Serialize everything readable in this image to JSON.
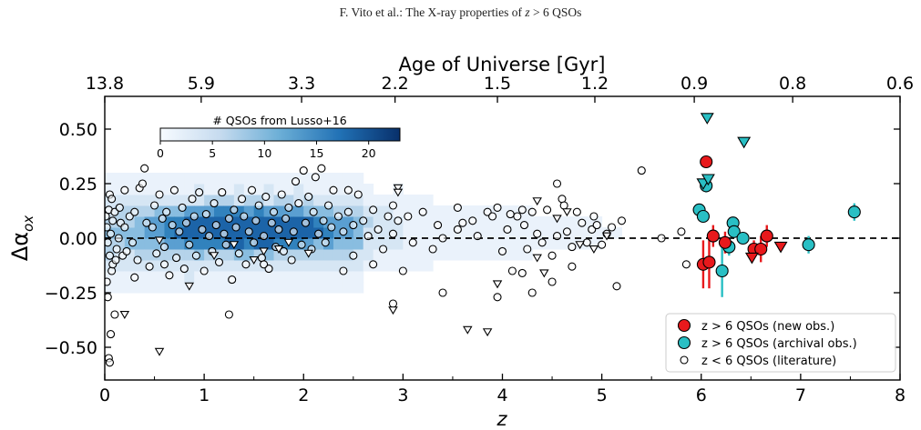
{
  "header": {
    "prefix": "F. Vito et al.: The X-ray properties of ",
    "var": "z",
    "suffix": " > 6 QSOs"
  },
  "chart_data": {
    "type": "scatter",
    "xlabel": "z",
    "ylabel": "Δα",
    "ylabel_sub": "ox",
    "xlim": [
      0,
      8
    ],
    "ylim": [
      -0.65,
      0.65
    ],
    "xticks": [
      "0",
      "1",
      "2",
      "3",
      "4",
      "5",
      "6",
      "7",
      "8"
    ],
    "yticks": [
      {
        "v": 0.5,
        "label": "0.50"
      },
      {
        "v": 0.25,
        "label": "0.25"
      },
      {
        "v": 0.0,
        "label": "0.00"
      },
      {
        "v": -0.25,
        "label": "−0.25"
      },
      {
        "v": -0.5,
        "label": "−0.50"
      }
    ],
    "top_axis": {
      "label": "Age of Universe [Gyr]",
      "ticks": [
        {
          "z": 0.0,
          "label": "13.8"
        },
        {
          "z": 0.97,
          "label": "5.9"
        },
        {
          "z": 1.98,
          "label": "3.3"
        },
        {
          "z": 2.92,
          "label": "2.2"
        },
        {
          "z": 3.95,
          "label": "1.5"
        },
        {
          "z": 4.93,
          "label": "1.2"
        },
        {
          "z": 5.93,
          "label": "0.9"
        },
        {
          "z": 6.92,
          "label": "0.8"
        },
        {
          "z": 8.0,
          "label": "0.6"
        }
      ]
    },
    "reference_line": {
      "y": 0.0,
      "style": "dashed"
    },
    "colorbar": {
      "label": "# QSOs from Lusso+16",
      "ticks": [
        "0",
        "5",
        "10",
        "15",
        "20"
      ],
      "range": [
        0,
        23
      ],
      "placement": "upper-left, horizontal"
    },
    "legend": {
      "placement": "lower-right",
      "entries": [
        {
          "label": "z > 6 QSOs (new obs.)",
          "color": "#e8191c",
          "marker": "circle"
        },
        {
          "label": "z > 6 QSOs (archival obs.)",
          "color": "#29bfc4",
          "marker": "circle"
        },
        {
          "label": "z < 6 QSOs (literature)",
          "color": "#ffffff",
          "marker": "open-circle"
        }
      ]
    },
    "series": [
      {
        "name": "z > 6 QSOs (new obs.)",
        "color": "#e8191c",
        "detections": [
          {
            "x": 6.05,
            "y": 0.35,
            "err": 0.0
          },
          {
            "x": 6.12,
            "y": 0.01,
            "err": 0.05
          },
          {
            "x": 6.02,
            "y": -0.12,
            "err": 0.11
          },
          {
            "x": 6.08,
            "y": -0.11,
            "err": 0.12
          },
          {
            "x": 6.24,
            "y": -0.02,
            "err": 0.05
          },
          {
            "x": 6.53,
            "y": -0.05,
            "err": 0.04
          },
          {
            "x": 6.6,
            "y": -0.05,
            "err": 0.06
          },
          {
            "x": 6.66,
            "y": 0.01,
            "err": 0.05
          }
        ],
        "upper_limits": [
          {
            "x": 6.51,
            "y": -0.09
          },
          {
            "x": 6.8,
            "y": -0.04
          }
        ]
      },
      {
        "name": "z > 6 QSOs (archival obs.)",
        "color": "#29bfc4",
        "detections": [
          {
            "x": 5.98,
            "y": 0.13,
            "err": 0.0
          },
          {
            "x": 6.02,
            "y": 0.1,
            "err": 0.0
          },
          {
            "x": 6.05,
            "y": 0.24,
            "err": 0.03
          },
          {
            "x": 6.21,
            "y": -0.15,
            "err": 0.12
          },
          {
            "x": 6.28,
            "y": -0.04,
            "err": 0.04
          },
          {
            "x": 6.32,
            "y": 0.07,
            "err": 0.0
          },
          {
            "x": 6.33,
            "y": 0.03,
            "err": 0.0
          },
          {
            "x": 6.42,
            "y": 0.0,
            "err": 0.0
          },
          {
            "x": 7.08,
            "y": -0.03,
            "err": 0.04
          },
          {
            "x": 7.54,
            "y": 0.12,
            "err": 0.04
          }
        ],
        "upper_limits": [
          {
            "x": 6.06,
            "y": 0.55
          },
          {
            "x": 6.43,
            "y": 0.44
          },
          {
            "x": 6.02,
            "y": 0.25
          },
          {
            "x": 6.07,
            "y": 0.27
          }
        ]
      },
      {
        "name": "z < 6 QSOs (literature)",
        "color": "#ffffff",
        "detections": [
          {
            "x": 0.01,
            "y": 0.1
          },
          {
            "x": 0.02,
            "y": 0.05
          },
          {
            "x": 0.03,
            "y": -0.02
          },
          {
            "x": 0.04,
            "y": 0.13
          },
          {
            "x": 0.05,
            "y": -0.08
          },
          {
            "x": 0.06,
            "y": 0.02
          },
          {
            "x": 0.07,
            "y": -0.15
          },
          {
            "x": 0.08,
            "y": 0.08
          },
          {
            "x": 0.1,
            "y": 0.12
          },
          {
            "x": 0.12,
            "y": -0.05
          },
          {
            "x": 0.02,
            "y": -0.2
          },
          {
            "x": 0.03,
            "y": -0.27
          },
          {
            "x": 0.08,
            "y": -0.12
          },
          {
            "x": 0.11,
            "y": -0.1
          },
          {
            "x": 0.14,
            "y": 0.0
          },
          {
            "x": 0.16,
            "y": 0.07
          },
          {
            "x": 0.18,
            "y": -0.08
          },
          {
            "x": 0.05,
            "y": 0.2
          },
          {
            "x": 0.07,
            "y": 0.18
          },
          {
            "x": 0.15,
            "y": 0.14
          },
          {
            "x": 0.2,
            "y": 0.05
          },
          {
            "x": 0.22,
            "y": -0.06
          },
          {
            "x": 0.06,
            "y": -0.44
          },
          {
            "x": 0.04,
            "y": -0.55
          },
          {
            "x": 0.05,
            "y": -0.57
          },
          {
            "x": 0.2,
            "y": 0.22
          },
          {
            "x": 0.25,
            "y": 0.1
          },
          {
            "x": 0.28,
            "y": -0.02
          },
          {
            "x": 0.3,
            "y": 0.12
          },
          {
            "x": 0.33,
            "y": -0.1
          },
          {
            "x": 0.35,
            "y": 0.23
          },
          {
            "x": 0.38,
            "y": 0.25
          },
          {
            "x": 0.4,
            "y": 0.32
          },
          {
            "x": 0.42,
            "y": 0.07
          },
          {
            "x": 0.45,
            "y": -0.13
          },
          {
            "x": 0.48,
            "y": 0.05
          },
          {
            "x": 0.5,
            "y": 0.15
          },
          {
            "x": 0.52,
            "y": -0.07
          },
          {
            "x": 0.55,
            "y": 0.2
          },
          {
            "x": 0.58,
            "y": 0.09
          },
          {
            "x": 0.6,
            "y": -0.04
          },
          {
            "x": 0.62,
            "y": 0.12
          },
          {
            "x": 0.65,
            "y": -0.17
          },
          {
            "x": 0.68,
            "y": 0.06
          },
          {
            "x": 0.7,
            "y": 0.22
          },
          {
            "x": 0.72,
            "y": -0.09
          },
          {
            "x": 0.75,
            "y": 0.03
          },
          {
            "x": 0.78,
            "y": 0.14
          },
          {
            "x": 0.8,
            "y": -0.14
          },
          {
            "x": 0.82,
            "y": 0.07
          },
          {
            "x": 0.85,
            "y": -0.03
          },
          {
            "x": 0.88,
            "y": 0.18
          },
          {
            "x": 0.9,
            "y": 0.1
          },
          {
            "x": 0.92,
            "y": -0.08
          },
          {
            "x": 0.95,
            "y": 0.21
          },
          {
            "x": 0.98,
            "y": 0.04
          },
          {
            "x": 1.0,
            "y": -0.15
          },
          {
            "x": 1.02,
            "y": 0.11
          },
          {
            "x": 1.05,
            "y": 0.01
          },
          {
            "x": 1.08,
            "y": -0.06
          },
          {
            "x": 1.1,
            "y": 0.16
          },
          {
            "x": 1.12,
            "y": 0.06
          },
          {
            "x": 1.15,
            "y": -0.11
          },
          {
            "x": 1.18,
            "y": 0.21
          },
          {
            "x": 1.2,
            "y": 0.02
          },
          {
            "x": 1.22,
            "y": -0.03
          },
          {
            "x": 1.25,
            "y": 0.09
          },
          {
            "x": 1.28,
            "y": -0.19
          },
          {
            "x": 1.3,
            "y": 0.13
          },
          {
            "x": 1.32,
            "y": 0.05
          },
          {
            "x": 1.35,
            "y": -0.07
          },
          {
            "x": 1.38,
            "y": 0.18
          },
          {
            "x": 1.4,
            "y": 0.1
          },
          {
            "x": 1.42,
            "y": -0.12
          },
          {
            "x": 1.45,
            "y": 0.03
          },
          {
            "x": 1.48,
            "y": 0.22
          },
          {
            "x": 1.5,
            "y": -0.02
          },
          {
            "x": 1.52,
            "y": 0.08
          },
          {
            "x": 1.55,
            "y": 0.15
          },
          {
            "x": 1.58,
            "y": -0.09
          },
          {
            "x": 1.6,
            "y": 0.01
          },
          {
            "x": 1.62,
            "y": 0.19
          },
          {
            "x": 1.65,
            "y": -0.14
          },
          {
            "x": 1.68,
            "y": 0.07
          },
          {
            "x": 1.7,
            "y": 0.12
          },
          {
            "x": 1.72,
            "y": -0.04
          },
          {
            "x": 1.75,
            "y": 0.04
          },
          {
            "x": 1.78,
            "y": 0.2
          },
          {
            "x": 1.8,
            "y": -0.06
          },
          {
            "x": 1.82,
            "y": 0.09
          },
          {
            "x": 1.85,
            "y": 0.14
          },
          {
            "x": 1.88,
            "y": -0.1
          },
          {
            "x": 1.9,
            "y": 0.03
          },
          {
            "x": 1.92,
            "y": 0.26
          },
          {
            "x": 1.95,
            "y": 0.16
          },
          {
            "x": 1.98,
            "y": -0.03
          },
          {
            "x": 2.0,
            "y": 0.31
          },
          {
            "x": 2.02,
            "y": 0.07
          },
          {
            "x": 2.05,
            "y": 0.19
          },
          {
            "x": 2.08,
            "y": -0.05
          },
          {
            "x": 2.1,
            "y": 0.12
          },
          {
            "x": 2.12,
            "y": 0.28
          },
          {
            "x": 2.15,
            "y": 0.02
          },
          {
            "x": 2.18,
            "y": 0.32
          },
          {
            "x": 2.2,
            "y": 0.08
          },
          {
            "x": 2.22,
            "y": -0.02
          },
          {
            "x": 2.25,
            "y": 0.15
          },
          {
            "x": 2.28,
            "y": 0.05
          },
          {
            "x": 2.3,
            "y": 0.22
          },
          {
            "x": 2.35,
            "y": 0.1
          },
          {
            "x": 2.4,
            "y": 0.03
          },
          {
            "x": 2.45,
            "y": 0.12
          },
          {
            "x": 2.5,
            "y": 0.06
          },
          {
            "x": 2.55,
            "y": 0.2
          },
          {
            "x": 2.6,
            "y": 0.08
          },
          {
            "x": 2.65,
            "y": 0.01
          },
          {
            "x": 2.7,
            "y": 0.13
          },
          {
            "x": 2.75,
            "y": 0.04
          },
          {
            "x": 2.8,
            "y": -0.05
          },
          {
            "x": 2.85,
            "y": 0.1
          },
          {
            "x": 2.9,
            "y": 0.02
          },
          {
            "x": 2.95,
            "y": 0.08
          },
          {
            "x": 3.05,
            "y": 0.1
          },
          {
            "x": 3.1,
            "y": -0.02
          },
          {
            "x": 3.2,
            "y": 0.12
          },
          {
            "x": 3.3,
            "y": -0.05
          },
          {
            "x": 3.35,
            "y": 0.06
          },
          {
            "x": 3.4,
            "y": 0.0
          },
          {
            "x": 3.55,
            "y": 0.14
          },
          {
            "x": 3.6,
            "y": 0.07
          },
          {
            "x": 3.7,
            "y": 0.08
          },
          {
            "x": 3.75,
            "y": 0.01
          },
          {
            "x": 3.85,
            "y": 0.12
          },
          {
            "x": 3.9,
            "y": 0.1
          },
          {
            "x": 3.95,
            "y": 0.14
          },
          {
            "x": 4.0,
            "y": -0.06
          },
          {
            "x": 4.05,
            "y": 0.04
          },
          {
            "x": 4.08,
            "y": 0.11
          },
          {
            "x": 4.1,
            "y": -0.15
          },
          {
            "x": 4.15,
            "y": 0.1
          },
          {
            "x": 4.2,
            "y": 0.13
          },
          {
            "x": 4.22,
            "y": 0.06
          },
          {
            "x": 4.25,
            "y": -0.05
          },
          {
            "x": 4.3,
            "y": 0.12
          },
          {
            "x": 4.35,
            "y": 0.02
          },
          {
            "x": 4.4,
            "y": -0.02
          },
          {
            "x": 4.45,
            "y": 0.13
          },
          {
            "x": 4.5,
            "y": -0.08
          },
          {
            "x": 4.55,
            "y": 0.01
          },
          {
            "x": 4.6,
            "y": 0.18
          },
          {
            "x": 4.65,
            "y": 0.03
          },
          {
            "x": 4.7,
            "y": -0.04
          },
          {
            "x": 4.75,
            "y": 0.12
          },
          {
            "x": 4.8,
            "y": 0.07
          },
          {
            "x": 4.85,
            "y": -0.02
          },
          {
            "x": 4.9,
            "y": 0.04
          },
          {
            "x": 4.92,
            "y": 0.1
          },
          {
            "x": 4.95,
            "y": 0.06
          },
          {
            "x": 5.0,
            "y": -0.03
          },
          {
            "x": 5.05,
            "y": 0.02
          },
          {
            "x": 5.1,
            "y": 0.05
          },
          {
            "x": 5.15,
            "y": -0.22
          },
          {
            "x": 5.2,
            "y": 0.08
          },
          {
            "x": 5.4,
            "y": 0.31
          },
          {
            "x": 5.6,
            "y": 0.0
          },
          {
            "x": 5.8,
            "y": 0.03
          },
          {
            "x": 5.85,
            "y": -0.12
          },
          {
            "x": 2.4,
            "y": -0.15
          },
          {
            "x": 2.5,
            "y": -0.08
          },
          {
            "x": 2.7,
            "y": -0.12
          },
          {
            "x": 2.9,
            "y": -0.3
          },
          {
            "x": 3.0,
            "y": -0.15
          },
          {
            "x": 3.4,
            "y": -0.25
          },
          {
            "x": 3.95,
            "y": -0.27
          },
          {
            "x": 4.2,
            "y": -0.16
          },
          {
            "x": 4.3,
            "y": -0.25
          },
          {
            "x": 4.5,
            "y": -0.2
          },
          {
            "x": 4.7,
            "y": -0.13
          },
          {
            "x": 0.1,
            "y": -0.35
          },
          {
            "x": 0.3,
            "y": -0.18
          },
          {
            "x": 1.25,
            "y": -0.35
          },
          {
            "x": 0.6,
            "y": -0.12
          },
          {
            "x": 1.6,
            "y": -0.12
          },
          {
            "x": 2.9,
            "y": 0.15
          },
          {
            "x": 3.55,
            "y": 0.04
          },
          {
            "x": 2.45,
            "y": 0.22
          },
          {
            "x": 4.62,
            "y": 0.15
          },
          {
            "x": 4.55,
            "y": 0.25
          }
        ],
        "upper_limits": [
          {
            "x": 0.2,
            "y": -0.35
          },
          {
            "x": 0.55,
            "y": -0.52
          },
          {
            "x": 0.85,
            "y": -0.22
          },
          {
            "x": 1.1,
            "y": -0.08
          },
          {
            "x": 1.3,
            "y": -0.03
          },
          {
            "x": 1.6,
            "y": -0.06
          },
          {
            "x": 1.75,
            "y": -0.05
          },
          {
            "x": 1.85,
            "y": -0.02
          },
          {
            "x": 2.05,
            "y": -0.07
          },
          {
            "x": 2.95,
            "y": 0.23
          },
          {
            "x": 2.9,
            "y": -0.33
          },
          {
            "x": 2.95,
            "y": 0.21
          },
          {
            "x": 3.95,
            "y": -0.21
          },
          {
            "x": 3.65,
            "y": -0.42
          },
          {
            "x": 3.85,
            "y": -0.43
          },
          {
            "x": 4.35,
            "y": -0.09
          },
          {
            "x": 4.42,
            "y": -0.16
          },
          {
            "x": 4.35,
            "y": 0.17
          },
          {
            "x": 4.78,
            "y": -0.03
          },
          {
            "x": 4.92,
            "y": -0.05
          },
          {
            "x": 5.05,
            "y": 0.01
          },
          {
            "x": 4.65,
            "y": 0.12
          },
          {
            "x": 4.55,
            "y": 0.09
          },
          {
            "x": 1.5,
            "y": -0.1
          },
          {
            "x": 0.55,
            "y": -0.01
          }
        ]
      }
    ]
  }
}
